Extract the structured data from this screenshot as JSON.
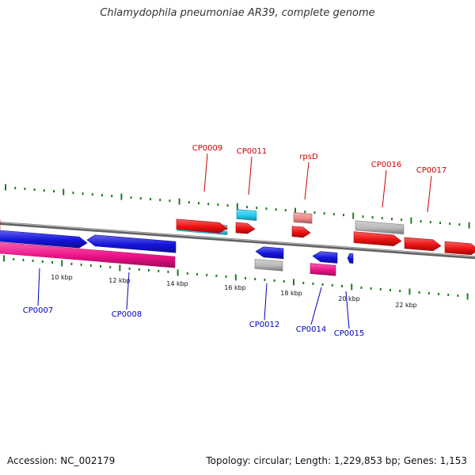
{
  "title": "Chlamydophila pneumoniae AR39, complete genome",
  "footer": {
    "accession_label": "Accession: NC_002179",
    "stats_label": "Topology: circular; Length: 1,229,853 bp; Genes: 1,153"
  },
  "colors": {
    "backbone": "#7a7a7a",
    "tick": "#1e7a1e",
    "forward_label": "#cc0000",
    "reverse_label": "#0000bb",
    "red_gene": "#ee1111",
    "blue_gene": "#1414dd",
    "pink_gene": "#ee1188",
    "grey_gene": "#b8b8b8",
    "cyan_gene": "#22ccee",
    "light_red_gene": "#ee8888"
  },
  "scale_labels": [
    "10 kbp",
    "12 kbp",
    "14 kbp",
    "16 kbp",
    "18 kbp",
    "20 kbp",
    "22 kbp"
  ],
  "forward_labels": [
    "CP0009",
    "CP0011",
    "rpsD",
    "CP0016",
    "CP0017"
  ],
  "reverse_labels": [
    "CP0007",
    "CP0008",
    "CP0012",
    "CP0014",
    "CP0015"
  ]
}
